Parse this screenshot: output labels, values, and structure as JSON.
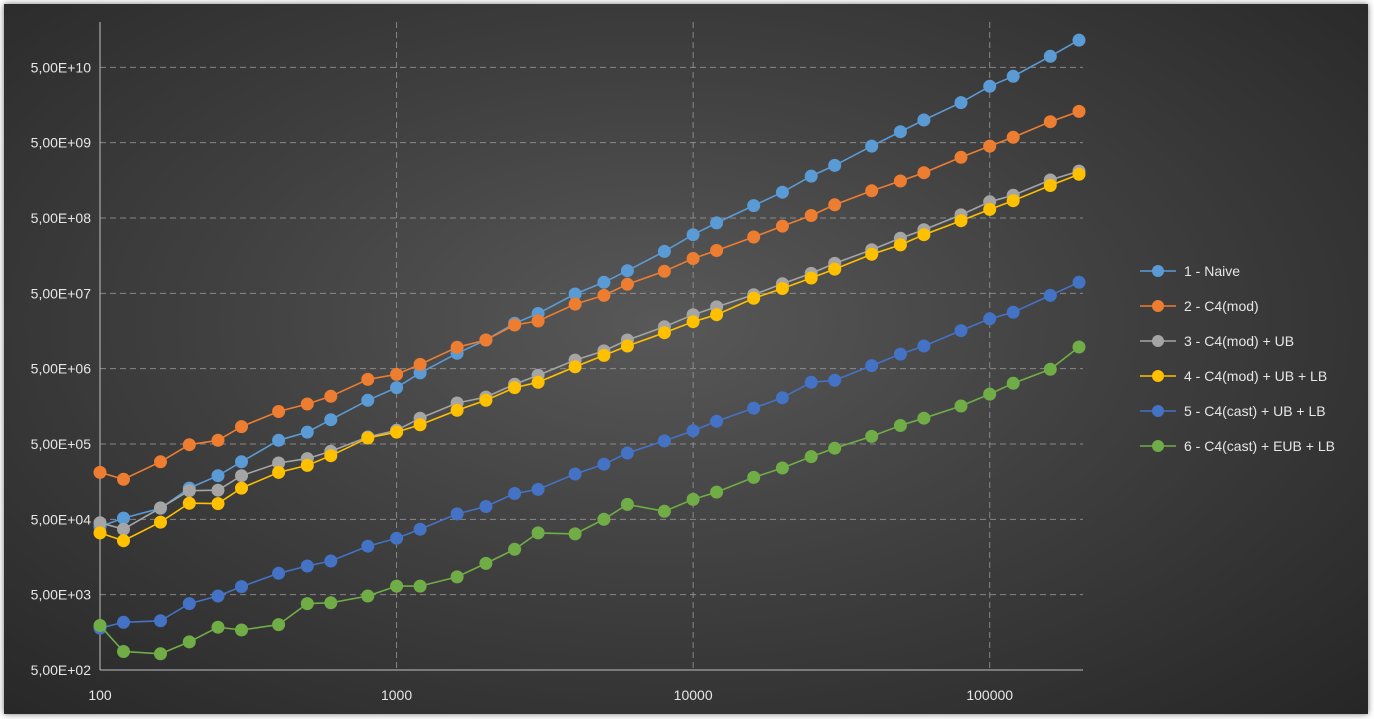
{
  "chart_data": {
    "type": "line",
    "title": "",
    "xlabel": "",
    "ylabel": "",
    "x_scale": "log",
    "y_scale": "log",
    "xlim": [
      100,
      200000
    ],
    "ylim": [
      500,
      200000000000
    ],
    "x_ticks": [
      100,
      1000,
      10000,
      100000
    ],
    "x_tick_labels": [
      "100",
      "1000",
      "10000",
      "100000"
    ],
    "y_ticks": [
      500,
      5000,
      50000,
      500000,
      5000000,
      50000000,
      500000000,
      5000000000,
      50000000000
    ],
    "y_tick_labels": [
      "5,00E+02",
      "5,00E+03",
      "5,00E+04",
      "5,00E+05",
      "5,00E+06",
      "5,00E+07",
      "5,00E+08",
      "5,00E+09",
      "5,00E+10"
    ],
    "grid": {
      "horizontal": true,
      "vertical": true,
      "style": "dashed"
    },
    "legend_position": "right",
    "x": [
      100,
      120,
      160,
      200,
      250,
      300,
      400,
      500,
      600,
      800,
      1000,
      1200,
      1600,
      2000,
      2500,
      3000,
      4000,
      5000,
      6000,
      8000,
      10000,
      12000,
      16000,
      20000,
      25000,
      30000,
      40000,
      50000,
      60000,
      80000,
      100000,
      120000,
      160000,
      200000
    ],
    "series": [
      {
        "name": "1 - Naive",
        "color": "#5b9bd5",
        "values": [
          40000,
          52000,
          70000,
          130000,
          190000,
          290000,
          560000,
          720000,
          1050000,
          1900000,
          2800000,
          4400000,
          8000000,
          12000000,
          20000000,
          27000000,
          49000000,
          70000000,
          100000000,
          180000000,
          300000000,
          430000000,
          730000000,
          1100000000,
          1800000000,
          2500000000,
          4500000000,
          7000000000,
          10000000000,
          17000000000,
          28000000000,
          38000000000,
          70000000000,
          115000000000
        ]
      },
      {
        "name": "2 - C4(mod)",
        "color": "#ed7d31",
        "values": [
          210000,
          170000,
          290000,
          490000,
          560000,
          850000,
          1350000,
          1700000,
          2150000,
          3600000,
          4200000,
          5700000,
          9600000,
          12000000,
          19000000,
          21500000,
          36000000,
          47000000,
          66000000,
          98000000,
          145000000,
          185000000,
          280000000,
          390000000,
          540000000,
          750000000,
          1150000000,
          1550000000,
          2000000000,
          3200000000,
          4500000000,
          5900000000,
          9500000000,
          13000000000
        ]
      },
      {
        "name": "3 - C4(mod) + UB",
        "color": "#a5a5a5",
        "values": [
          45000,
          37000,
          71000,
          120000,
          122000,
          190000,
          280000,
          320000,
          400000,
          620000,
          760000,
          1100000,
          1750000,
          2100000,
          3100000,
          4100000,
          6500000,
          8600000,
          12000000,
          18000000,
          26000000,
          33000000,
          48000000,
          67000000,
          92000000,
          125000000,
          190000000,
          270000000,
          350000000,
          550000000,
          820000000,
          1000000000,
          1600000000,
          2100000000
        ]
      },
      {
        "name": "4 - C4(mod) + UB + LB",
        "color": "#ffc000",
        "values": [
          33000,
          26000,
          46000,
          82000,
          81000,
          130000,
          210000,
          260000,
          350000,
          600000,
          720000,
          900000,
          1400000,
          1900000,
          2800000,
          3300000,
          5300000,
          7500000,
          10000000,
          15000000,
          21000000,
          26000000,
          43000000,
          58000000,
          80000000,
          105000000,
          165000000,
          220000000,
          300000000,
          460000000,
          650000000,
          850000000,
          1350000000,
          1900000000
        ]
      },
      {
        "name": "5 - C4(cast) + UB + LB",
        "color": "#4472c4",
        "values": [
          1800,
          2150,
          2250,
          3800,
          4800,
          6400,
          9600,
          12000,
          14000,
          22000,
          28000,
          37000,
          59000,
          74000,
          110000,
          125000,
          200000,
          270000,
          380000,
          550000,
          750000,
          1000000,
          1500000,
          2050000,
          3300000,
          3500000,
          5500000,
          7800000,
          10000000,
          16000000,
          23000000,
          28000000,
          47000000,
          70000000
        ]
      },
      {
        "name": "6 - C4(cast) + EUB + LB",
        "color": "#70ad47",
        "values": [
          1950,
          880,
          820,
          1180,
          1850,
          1700,
          2000,
          3800,
          3900,
          4800,
          6500,
          6500,
          8600,
          13000,
          20000,
          33000,
          32000,
          50000,
          79000,
          64000,
          92000,
          115000,
          180000,
          240000,
          340000,
          440000,
          630000,
          880000,
          1100000,
          1600000,
          2300000,
          3200000,
          4900000,
          9700000
        ]
      }
    ]
  }
}
